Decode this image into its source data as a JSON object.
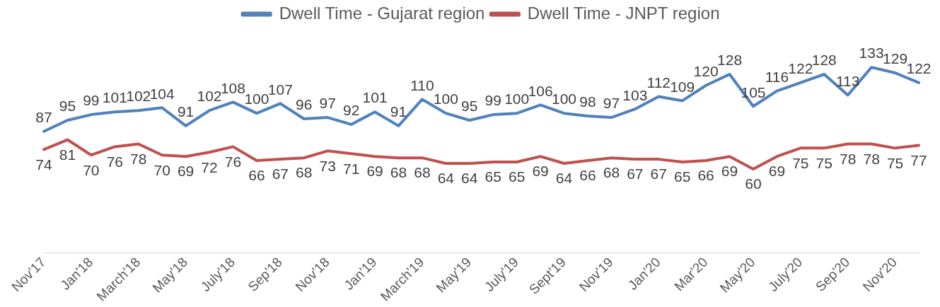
{
  "chart_data": {
    "type": "line",
    "categories": [
      "Nov'17",
      null,
      "Jan'18",
      null,
      "March'18",
      null,
      "May'18",
      null,
      "July'18",
      null,
      "Sep'18",
      null,
      "Nov'18",
      null,
      "Jan'19",
      null,
      "March'19",
      null,
      "May'19",
      null,
      "July'19",
      null,
      "Sept'19",
      null,
      "Nov'19",
      null,
      "Jan'20",
      null,
      "Mar'20",
      null,
      "May'20",
      null,
      "July'20",
      null,
      "Sep'20",
      null,
      "Nov'20",
      null
    ],
    "series": [
      {
        "name": "Dwell Time - Gujarat region",
        "color": "#4f81bd",
        "values": [
          87,
          95,
          99,
          101,
          102,
          104,
          91,
          102,
          108,
          100,
          107,
          96,
          97,
          92,
          101,
          91,
          110,
          100,
          95,
          99,
          100,
          106,
          100,
          98,
          97,
          103,
          112,
          109,
          120,
          128,
          105,
          116,
          122,
          128,
          113,
          133,
          129,
          122
        ]
      },
      {
        "name": "Dwell Time - JNPT region",
        "color": "#c0504d",
        "values": [
          74,
          81,
          70,
          76,
          78,
          70,
          69,
          72,
          76,
          66,
          67,
          68,
          73,
          71,
          69,
          68,
          68,
          64,
          64,
          65,
          65,
          69,
          64,
          66,
          68,
          67,
          67,
          65,
          66,
          69,
          60,
          69,
          75,
          75,
          78,
          78,
          75,
          77
        ]
      }
    ],
    "tick_labels": "x",
    "data_labels": true,
    "legend": "top",
    "marker": "none",
    "line_style": "solid"
  }
}
